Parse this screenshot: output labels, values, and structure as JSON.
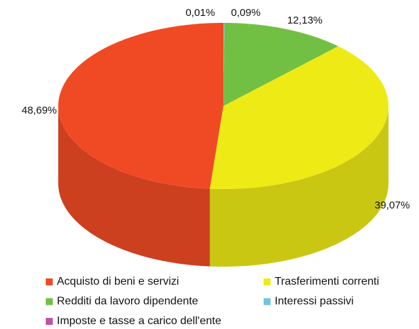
{
  "chart_data": {
    "type": "pie",
    "categories": [
      "Acquisto di beni e servizi",
      "Trasferimenti correnti",
      "Redditi da lavoro dipendente",
      "Interessi passivi",
      "Imposte e tasse a carico dell'ente"
    ],
    "values": [
      48.69,
      39.07,
      12.13,
      0.09,
      0.01
    ],
    "value_labels": [
      "48,69%",
      "39,07%",
      "12,13%",
      "0,09%",
      "0,01%"
    ],
    "colors": [
      "#f04a24",
      "#eeea16",
      "#72c043",
      "#6dc9d8",
      "#c050a8"
    ]
  }
}
